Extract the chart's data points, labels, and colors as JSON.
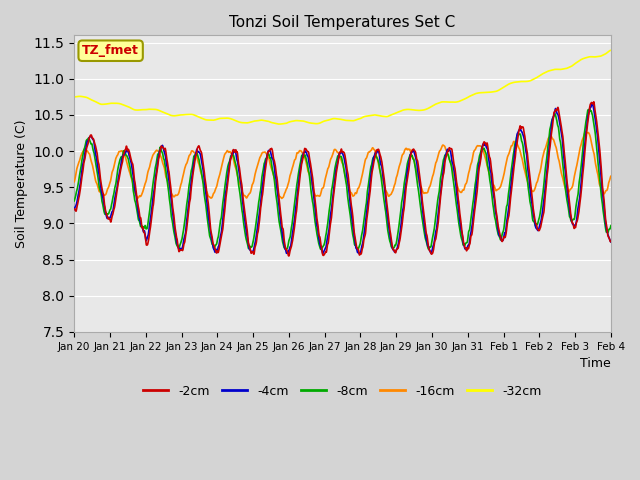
{
  "title": "Tonzi Soil Temperatures Set C",
  "xlabel": "Time",
  "ylabel": "Soil Temperature (C)",
  "ylim": [
    7.5,
    11.6
  ],
  "legend_labels": [
    "-2cm",
    "-4cm",
    "-8cm",
    "-16cm",
    "-32cm"
  ],
  "legend_colors": [
    "#cc0000",
    "#0000cc",
    "#00aa00",
    "#ff8800",
    "#ffff00"
  ],
  "annotation_text": "TZ_fmet",
  "annotation_color": "#cc0000",
  "annotation_bg": "#ffff99",
  "annotation_border": "#999900",
  "x_tick_labels": [
    "Jan 20",
    "Jan 21",
    "Jan 22",
    "Jan 23",
    "Jan 24",
    "Jan 25",
    "Jan 26",
    "Jan 27",
    "Jan 28",
    "Jan 29",
    "Jan 30",
    "Jan 31",
    "Feb 1",
    "Feb 2",
    "Feb 3",
    "Feb 4"
  ],
  "n_points": 3840,
  "days": 15
}
